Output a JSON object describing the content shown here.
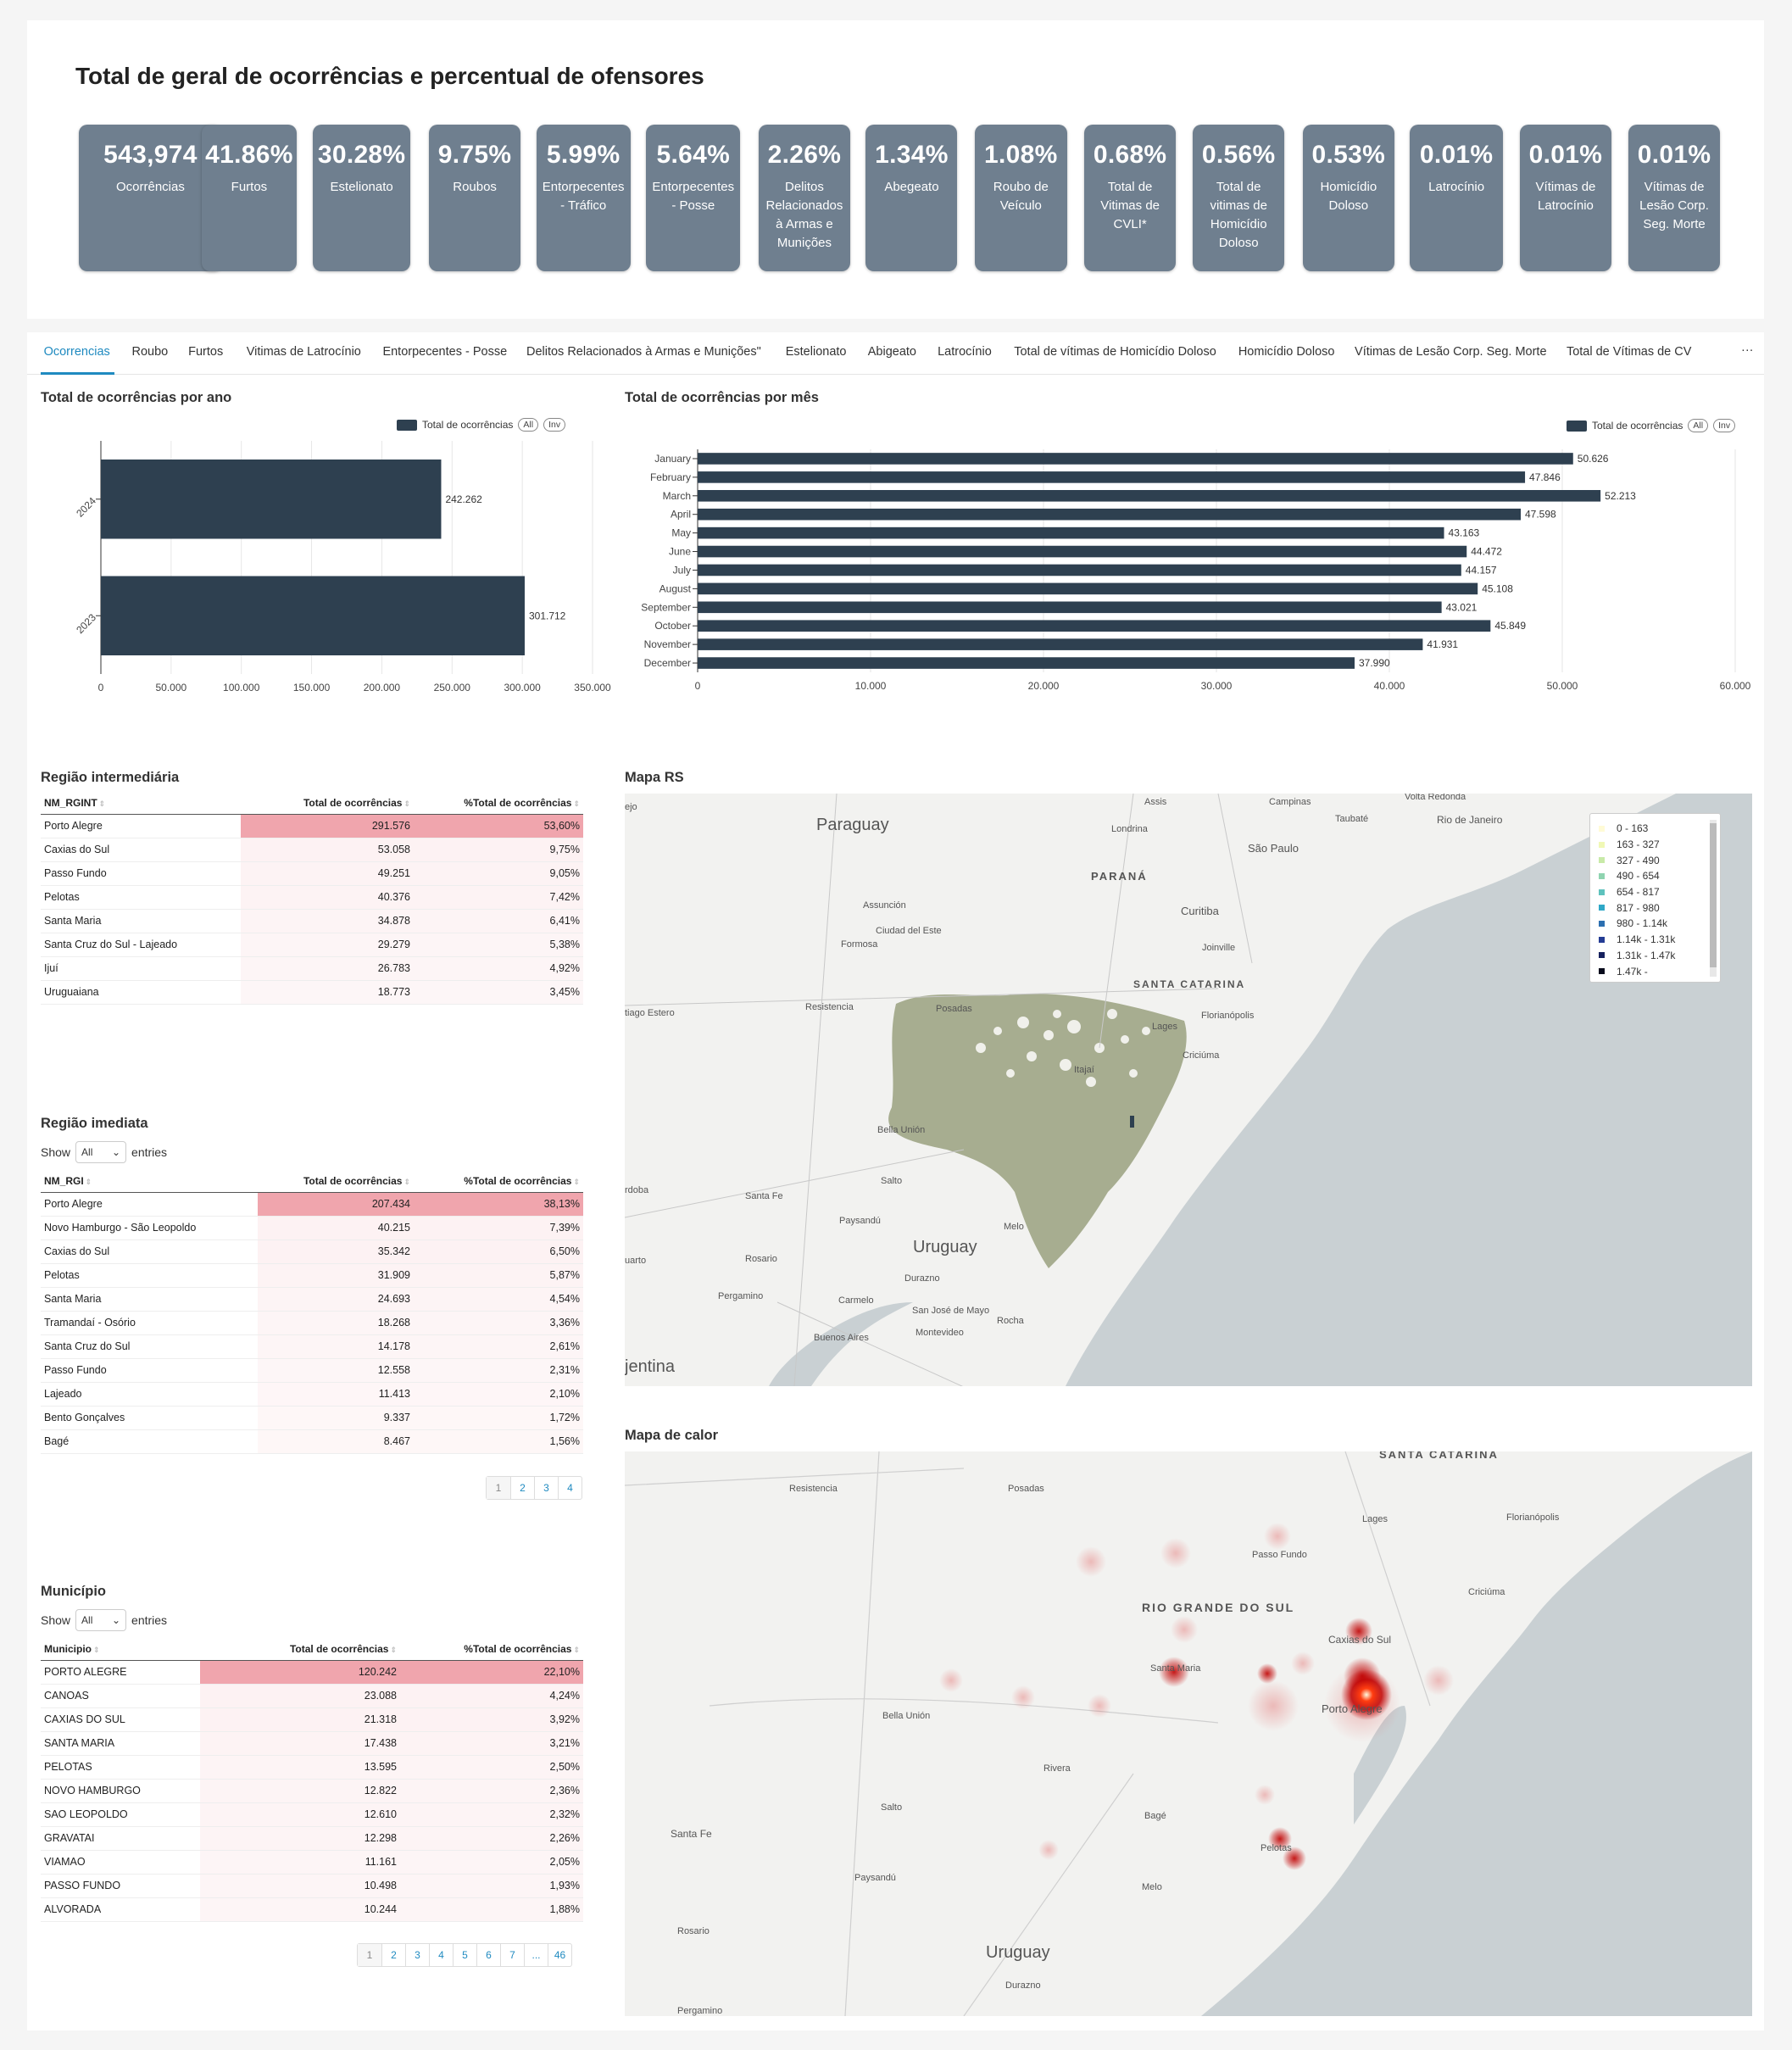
{
  "header": {
    "title": "Total de geral de ocorrências e percentual de ofensores"
  },
  "kpis": [
    {
      "value": "543,974",
      "label": "Ocorrências"
    },
    {
      "value": "41.86%",
      "label": "Furtos"
    },
    {
      "value": "30.28%",
      "label": "Estelionato"
    },
    {
      "value": "9.75%",
      "label": "Roubos"
    },
    {
      "value": "5.99%",
      "label": "Entorpecentes - Tráfico"
    },
    {
      "value": "5.64%",
      "label": "Entorpecentes - Posse"
    },
    {
      "value": "2.26%",
      "label": "Delitos Relacionados à Armas e Munições"
    },
    {
      "value": "1.34%",
      "label": "Abegeato"
    },
    {
      "value": "1.08%",
      "label": "Roubo de Veículo"
    },
    {
      "value": "0.68%",
      "label": "Total de Vitimas de CVLI*"
    },
    {
      "value": "0.56%",
      "label": "Total de vitimas de Homicídio Doloso"
    },
    {
      "value": "0.53%",
      "label": "Homicídio Doloso"
    },
    {
      "value": "0.01%",
      "label": "Latrocínio"
    },
    {
      "value": "0.01%",
      "label": "Vítimas de Latrocínio"
    },
    {
      "value": "0.01%",
      "label": "Vítimas de Lesão Corp. Seg. Morte"
    }
  ],
  "tabs": [
    "Ocorrencias",
    "Roubo",
    "Furtos",
    "Vitimas de Latrocínio",
    "Entorpecentes - Posse",
    "Delitos Relacionados à Armas e Munições\"",
    "Estelionato",
    "Abigeato",
    "Latrocínio",
    "Total de vítimas de Homicídio Doloso",
    "Homicídio Doloso",
    "Vítimas de Lesão Corp. Seg. Morte",
    "Total de Vítimas de CV"
  ],
  "more_label": "···",
  "year_chart": {
    "title": "Total de ocorrências por ano",
    "legend": "Total de ocorrências",
    "all": "All",
    "inv": "Inv"
  },
  "month_chart": {
    "title": "Total de ocorrências por mês",
    "legend": "Total de ocorrências",
    "all": "All",
    "inv": "Inv"
  },
  "chart_data": [
    {
      "type": "bar",
      "orientation": "horizontal",
      "title": "Total de ocorrências por ano",
      "categories": [
        "2024",
        "2023"
      ],
      "series": [
        {
          "name": "Total de ocorrências",
          "values": [
            242262,
            301712
          ]
        }
      ],
      "value_labels": [
        "242.262",
        "301.712"
      ],
      "xlim": [
        0,
        350000
      ],
      "ticks": [
        "0",
        "50.000",
        "100.000",
        "150.000",
        "200.000",
        "250.000",
        "300.000",
        "350.000"
      ],
      "grid": true,
      "legend": "top-right"
    },
    {
      "type": "bar",
      "orientation": "horizontal",
      "title": "Total de ocorrências por mês",
      "categories": [
        "January",
        "February",
        "March",
        "April",
        "May",
        "June",
        "July",
        "August",
        "September",
        "October",
        "November",
        "December"
      ],
      "series": [
        {
          "name": "Total de ocorrências",
          "values": [
            50626,
            47846,
            52213,
            47598,
            43163,
            44472,
            44157,
            45108,
            43021,
            45849,
            41931,
            37990
          ]
        }
      ],
      "value_labels": [
        "50.626",
        "47.846",
        "52.213",
        "47.598",
        "43.163",
        "44.472",
        "44.157",
        "45.108",
        "43.021",
        "45.849",
        "41.931",
        "37.990"
      ],
      "xlim": [
        0,
        60000
      ],
      "ticks": [
        "0",
        "10.000",
        "20.000",
        "30.000",
        "40.000",
        "50.000",
        "60.000"
      ],
      "grid": true,
      "legend": "top-right"
    }
  ],
  "rgint": {
    "title": "Região intermediária",
    "columns": [
      "NM_RGINT",
      "Total de ocorrências",
      "%Total de ocorrências"
    ],
    "rows": [
      [
        "Porto Alegre",
        "291.576",
        "53,60%"
      ],
      [
        "Caxias do Sul",
        "53.058",
        "9,75%"
      ],
      [
        "Passo Fundo",
        "49.251",
        "9,05%"
      ],
      [
        "Pelotas",
        "40.376",
        "7,42%"
      ],
      [
        "Santa Maria",
        "34.878",
        "6,41%"
      ],
      [
        "Santa Cruz do Sul - Lajeado",
        "29.279",
        "5,38%"
      ],
      [
        "Ijuí",
        "26.783",
        "4,92%"
      ],
      [
        "Uruguaiana",
        "18.773",
        "3,45%"
      ]
    ]
  },
  "rgi": {
    "title": "Região imediata",
    "show": "Show",
    "entries": "entries",
    "select": "All",
    "columns": [
      "NM_RGI",
      "Total de ocorrências",
      "%Total de ocorrências"
    ],
    "rows": [
      [
        "Porto Alegre",
        "207.434",
        "38,13%"
      ],
      [
        "Novo Hamburgo - São Leopoldo",
        "40.215",
        "7,39%"
      ],
      [
        "Caxias do Sul",
        "35.342",
        "6,50%"
      ],
      [
        "Pelotas",
        "31.909",
        "5,87%"
      ],
      [
        "Santa Maria",
        "24.693",
        "4,54%"
      ],
      [
        "Tramandaí - Osório",
        "18.268",
        "3,36%"
      ],
      [
        "Santa Cruz do Sul",
        "14.178",
        "2,61%"
      ],
      [
        "Passo Fundo",
        "12.558",
        "2,31%"
      ],
      [
        "Lajeado",
        "11.413",
        "2,10%"
      ],
      [
        "Bento Gonçalves",
        "9.337",
        "1,72%"
      ],
      [
        "Bagé",
        "8.467",
        "1,56%"
      ]
    ],
    "pages": [
      "1",
      "2",
      "3",
      "4"
    ]
  },
  "mun": {
    "title": "Município",
    "show": "Show",
    "entries": "entries",
    "select": "All",
    "columns": [
      "Municipio",
      "Total de ocorrências",
      "%Total de ocorrências"
    ],
    "rows": [
      [
        "PORTO ALEGRE",
        "120.242",
        "22,10%"
      ],
      [
        "CANOAS",
        "23.088",
        "4,24%"
      ],
      [
        "CAXIAS DO SUL",
        "21.318",
        "3,92%"
      ],
      [
        "SANTA MARIA",
        "17.438",
        "3,21%"
      ],
      [
        "PELOTAS",
        "13.595",
        "2,50%"
      ],
      [
        "NOVO HAMBURGO",
        "12.822",
        "2,36%"
      ],
      [
        "SAO LEOPOLDO",
        "12.610",
        "2,32%"
      ],
      [
        "GRAVATAI",
        "12.298",
        "2,26%"
      ],
      [
        "VIAMAO",
        "11.161",
        "2,05%"
      ],
      [
        "PASSO FUNDO",
        "10.498",
        "1,93%"
      ],
      [
        "ALVORADA",
        "10.244",
        "1,88%"
      ]
    ],
    "pages": [
      "1",
      "2",
      "3",
      "4",
      "5",
      "6",
      "7",
      "...",
      "46"
    ]
  },
  "map_rs": {
    "title": "Mapa RS",
    "legend": [
      "0 - 163",
      "163 - 327",
      "327 - 490",
      "490 - 654",
      "654 - 817",
      "817 - 980",
      "980 - 1.14k",
      "1.14k - 1.31k",
      "1.31k - 1.47k",
      "1.47k -"
    ],
    "legend_colors": [
      "#fffbd6",
      "#f0f8b5",
      "#c8eaa8",
      "#8fd4b0",
      "#5ec2bd",
      "#2fa8c7",
      "#2c6fb0",
      "#243c94",
      "#16215e",
      "#080b1c"
    ],
    "labels": [
      "Paraguay",
      "Uruguay",
      "jentina",
      "PARANÁ",
      "SANTA CATARINA",
      "São Paulo",
      "Campinas",
      "Curitiba",
      "Florianópolis",
      "Assis",
      "Londrina",
      "Taubaté",
      "Volta Redonda",
      "Rio de Janeiro",
      "Joinville",
      "Lages",
      "Criciúma",
      "Assunción",
      "Ciudad del Este",
      "Formosa",
      "Resistencia",
      "Posadas",
      "Bella Unión",
      "Salto",
      "Santa Fe",
      "Paysandú",
      "Rosario",
      "Durazno",
      "Melo",
      "Pergamino",
      "Carmelo",
      "Buenos Aires",
      "San José de Mayo",
      "Montevideo",
      "Rocha",
      "Itajaí",
      "ejo",
      "tiago Estero",
      "uarto",
      "rdoba"
    ]
  },
  "heat": {
    "title": "Mapa de calor",
    "labels": [
      "SANTA CATARINA",
      "RIO GRANDE DO SUL",
      "Uruguay",
      "Resistencia",
      "Posadas",
      "Lages",
      "Florianópolis",
      "Passo Fundo",
      "Criciúma",
      "Caxias do Sul",
      "Santa Maria",
      "Porto Alegre",
      "Bella Unión",
      "Rivera",
      "Salto",
      "Bagé",
      "Santa Fe",
      "Paysandú",
      "Melo",
      "Pelotas",
      "Rosario",
      "Durazno",
      "Pergamino"
    ]
  }
}
